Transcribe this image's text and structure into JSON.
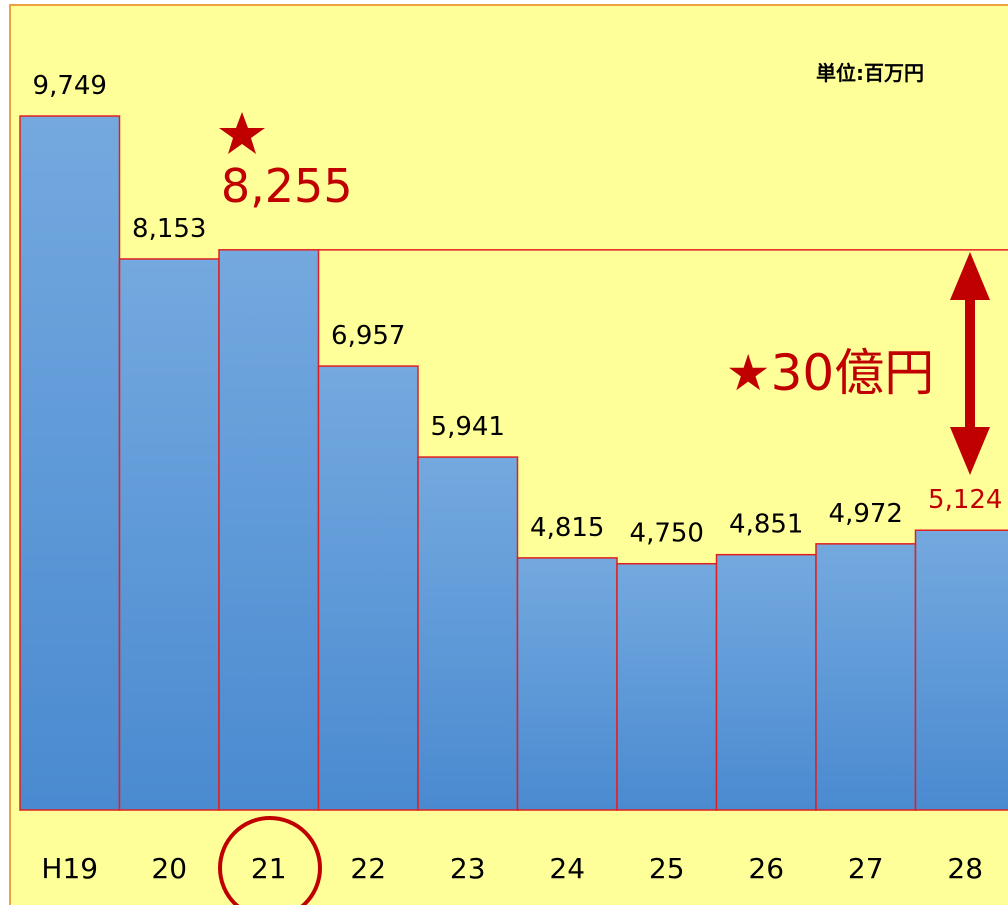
{
  "chart_data": {
    "type": "bar",
    "categories": [
      "H19",
      "20",
      "21",
      "22",
      "23",
      "24",
      "25",
      "26",
      "27",
      "28"
    ],
    "values": [
      9749,
      8153,
      8255,
      6957,
      5941,
      4815,
      4750,
      4851,
      4972,
      5124
    ],
    "value_labels": [
      "9,749",
      "8,153",
      "8,255",
      "6,957",
      "5,941",
      "4,815",
      "4,750",
      "4,851",
      "4,972",
      "5,124"
    ],
    "value_label_colors": [
      "#000000",
      "#000000",
      "#c00000",
      "#000000",
      "#000000",
      "#000000",
      "#000000",
      "#000000",
      "#000000",
      "#c00000"
    ],
    "color": "#5b9bd5",
    "edge_color": "#e02020",
    "ylim": [
      2000,
      11000
    ],
    "unit_label": "単位:百万円",
    "annotation": "★30億円"
  }
}
